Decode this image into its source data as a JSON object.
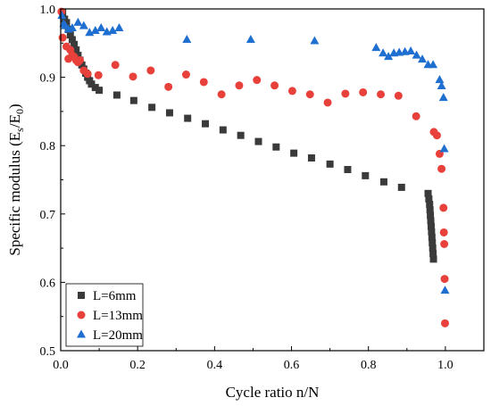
{
  "chart_data": {
    "type": "scatter",
    "xlabel": "Cycle ratio n/N",
    "ylabel_parts": {
      "main": "Specific modulus (E",
      "sub1": "s",
      "mid": "/E",
      "sub2": "0",
      "end": ")"
    },
    "xlim": [
      0.0,
      1.1
    ],
    "ylim": [
      0.5,
      1.0
    ],
    "xticks": [
      0.0,
      0.2,
      0.4,
      0.6,
      0.8,
      1.0
    ],
    "xtick_labels": [
      "0.0",
      "0.2",
      "0.4",
      "0.6",
      "0.8",
      "1.0"
    ],
    "yticks": [
      0.5,
      0.6,
      0.7,
      0.8,
      0.9,
      1.0
    ],
    "ytick_labels": [
      "0.5",
      "0.6",
      "0.7",
      "0.8",
      "0.9",
      "1.0"
    ],
    "grid": false,
    "legend_position": "bottom-left",
    "series": [
      {
        "name": "L=6mm",
        "marker": "square",
        "color": "#3a3a3a",
        "points": [
          [
            0.005,
            0.995
          ],
          [
            0.01,
            0.985
          ],
          [
            0.015,
            0.98
          ],
          [
            0.02,
            0.97
          ],
          [
            0.025,
            0.962
          ],
          [
            0.03,
            0.955
          ],
          [
            0.035,
            0.948
          ],
          [
            0.04,
            0.94
          ],
          [
            0.045,
            0.932
          ],
          [
            0.05,
            0.925
          ],
          [
            0.055,
            0.918
          ],
          [
            0.06,
            0.912
          ],
          [
            0.065,
            0.906
          ],
          [
            0.07,
            0.9
          ],
          [
            0.075,
            0.895
          ],
          [
            0.08,
            0.89
          ],
          [
            0.09,
            0.885
          ],
          [
            0.1,
            0.881
          ],
          [
            0.146,
            0.874
          ],
          [
            0.19,
            0.866
          ],
          [
            0.237,
            0.856
          ],
          [
            0.283,
            0.848
          ],
          [
            0.33,
            0.84
          ],
          [
            0.376,
            0.832
          ],
          [
            0.422,
            0.823
          ],
          [
            0.468,
            0.815
          ],
          [
            0.514,
            0.806
          ],
          [
            0.56,
            0.798
          ],
          [
            0.606,
            0.789
          ],
          [
            0.652,
            0.782
          ],
          [
            0.7,
            0.773
          ],
          [
            0.746,
            0.765
          ],
          [
            0.792,
            0.756
          ],
          [
            0.84,
            0.747
          ],
          [
            0.886,
            0.739
          ],
          [
            0.955,
            0.73
          ],
          [
            0.957,
            0.722
          ],
          [
            0.959,
            0.714
          ],
          [
            0.96,
            0.706
          ],
          [
            0.961,
            0.698
          ],
          [
            0.962,
            0.69
          ],
          [
            0.963,
            0.682
          ],
          [
            0.964,
            0.674
          ],
          [
            0.965,
            0.666
          ],
          [
            0.966,
            0.658
          ],
          [
            0.967,
            0.65
          ],
          [
            0.968,
            0.642
          ],
          [
            0.969,
            0.634
          ]
        ]
      },
      {
        "name": "L=13mm",
        "marker": "circle",
        "color": "#e8403a",
        "points": [
          [
            0.002,
            0.996
          ],
          [
            0.005,
            0.958
          ],
          [
            0.015,
            0.945
          ],
          [
            0.02,
            0.927
          ],
          [
            0.025,
            0.94
          ],
          [
            0.03,
            0.932
          ],
          [
            0.035,
            0.93
          ],
          [
            0.04,
            0.925
          ],
          [
            0.045,
            0.922
          ],
          [
            0.05,
            0.925
          ],
          [
            0.06,
            0.91
          ],
          [
            0.07,
            0.905
          ],
          [
            0.098,
            0.903
          ],
          [
            0.142,
            0.918
          ],
          [
            0.188,
            0.901
          ],
          [
            0.234,
            0.91
          ],
          [
            0.28,
            0.886
          ],
          [
            0.326,
            0.904
          ],
          [
            0.372,
            0.893
          ],
          [
            0.418,
            0.875
          ],
          [
            0.464,
            0.888
          ],
          [
            0.51,
            0.896
          ],
          [
            0.556,
            0.888
          ],
          [
            0.602,
            0.88
          ],
          [
            0.648,
            0.875
          ],
          [
            0.694,
            0.863
          ],
          [
            0.74,
            0.876
          ],
          [
            0.786,
            0.878
          ],
          [
            0.832,
            0.875
          ],
          [
            0.878,
            0.873
          ],
          [
            0.924,
            0.843
          ],
          [
            0.97,
            0.82
          ],
          [
            0.978,
            0.815
          ],
          [
            0.985,
            0.788
          ],
          [
            0.99,
            0.766
          ],
          [
            0.995,
            0.709
          ],
          [
            0.996,
            0.673
          ],
          [
            0.997,
            0.656
          ],
          [
            0.998,
            0.605
          ],
          [
            0.999,
            0.54
          ]
        ]
      },
      {
        "name": "L=20mm",
        "marker": "triangle",
        "color": "#1f6fd1",
        "points": [
          [
            0.003,
            0.99
          ],
          [
            0.008,
            0.978
          ],
          [
            0.012,
            0.975
          ],
          [
            0.02,
            0.97
          ],
          [
            0.03,
            0.972
          ],
          [
            0.045,
            0.98
          ],
          [
            0.06,
            0.975
          ],
          [
            0.075,
            0.965
          ],
          [
            0.09,
            0.968
          ],
          [
            0.105,
            0.972
          ],
          [
            0.12,
            0.966
          ],
          [
            0.135,
            0.968
          ],
          [
            0.152,
            0.972
          ],
          [
            0.328,
            0.955
          ],
          [
            0.494,
            0.955
          ],
          [
            0.66,
            0.953
          ],
          [
            0.82,
            0.943
          ],
          [
            0.838,
            0.935
          ],
          [
            0.852,
            0.93
          ],
          [
            0.866,
            0.935
          ],
          [
            0.88,
            0.936
          ],
          [
            0.895,
            0.937
          ],
          [
            0.91,
            0.938
          ],
          [
            0.925,
            0.932
          ],
          [
            0.94,
            0.926
          ],
          [
            0.955,
            0.918
          ],
          [
            0.968,
            0.918
          ],
          [
            0.985,
            0.896
          ],
          [
            0.99,
            0.887
          ],
          [
            0.995,
            0.87
          ],
          [
            0.997,
            0.795
          ],
          [
            0.999,
            0.588
          ]
        ]
      }
    ]
  }
}
